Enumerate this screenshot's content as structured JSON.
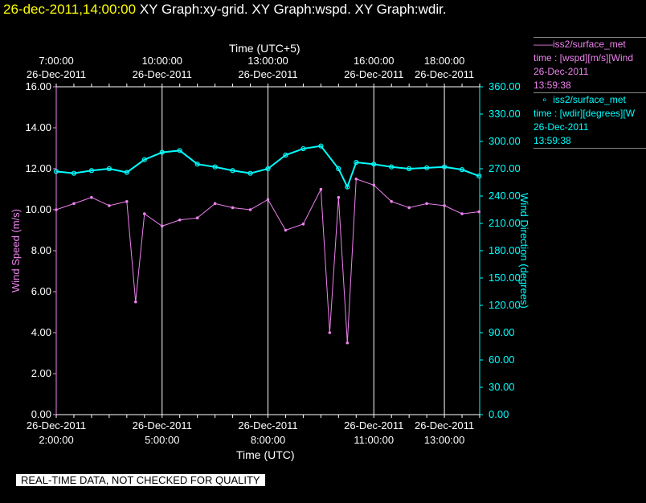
{
  "header": {
    "timestamp": "26-dec-2011,14:00:00",
    "graphs": "XY Graph:xy-grid.  XY Graph:wspd.  XY Graph:wdir."
  },
  "top_axis": {
    "title": "Time (UTC+5)",
    "ticks": [
      {
        "time": "7:00:00",
        "date": "26-Dec-2011"
      },
      {
        "time": "10:00:00",
        "date": "26-Dec-2011"
      },
      {
        "time": "13:00:00",
        "date": "26-Dec-2011"
      },
      {
        "time": "16:00:00",
        "date": "26-Dec-2011"
      },
      {
        "time": "18:00:00",
        "date": "26-Dec-2011"
      }
    ]
  },
  "bottom_axis": {
    "title": "Time (UTC)",
    "ticks": [
      {
        "date": "26-Dec-2011",
        "time": "2:00:00"
      },
      {
        "date": "26-Dec-2011",
        "time": "5:00:00"
      },
      {
        "date": "26-Dec-2011",
        "time": "8:00:00"
      },
      {
        "date": "26-Dec-2011",
        "time": "11:00:00"
      },
      {
        "date": "26-Dec-2011",
        "time": "13:00:00"
      }
    ]
  },
  "legend": {
    "wspd": {
      "name": "iss2/surface_met",
      "var": "time : [wspd][m/s][Wind",
      "date": "26-Dec-2011",
      "time": "13:59:38"
    },
    "wdir": {
      "name": "iss2/surface_met",
      "var": "time : [wdir][degrees][W",
      "date": "26-Dec-2011",
      "time": "13:59:38"
    }
  },
  "notice": "REAL-TIME DATA, NOT CHECKED FOR QUALITY",
  "colors": {
    "wspd": "#ee82ee",
    "wdir": "#00ffff",
    "timestamp": "#ffff00",
    "grid": "#ffffff"
  },
  "chart_data": {
    "type": "line",
    "xlabel": "Time (UTC)",
    "x2label": "Time (UTC+5)",
    "xlim": [
      "26-Dec-2011 02:00",
      "26-Dec-2011 14:00"
    ],
    "ylabel": "Wind Speed (m/s)",
    "ylim": [
      0,
      16
    ],
    "y_ticks": [
      "0.00",
      "2.00",
      "4.00",
      "6.00",
      "8.00",
      "10.00",
      "12.00",
      "14.00",
      "16.00"
    ],
    "y2label": "Wind Direction (degrees)",
    "y2lim": [
      0,
      360
    ],
    "y2_ticks": [
      "0.00",
      "30.00",
      "60.00",
      "90.00",
      "120.00",
      "150.00",
      "180.00",
      "210.00",
      "240.00",
      "270.00",
      "300.00",
      "330.00",
      "360.00"
    ],
    "grid": true,
    "series": [
      {
        "name": "iss2/surface_met",
        "variable": "wspd",
        "axis": "left",
        "x": [
          "02:00",
          "02:30",
          "03:00",
          "03:30",
          "04:00",
          "04:15",
          "04:30",
          "05:00",
          "05:30",
          "06:00",
          "06:30",
          "07:00",
          "07:30",
          "08:00",
          "08:30",
          "09:00",
          "09:30",
          "09:45",
          "10:00",
          "10:15",
          "10:30",
          "11:00",
          "11:30",
          "12:00",
          "12:30",
          "13:00",
          "13:30",
          "13:59"
        ],
        "values": [
          10.0,
          10.3,
          10.6,
          10.2,
          10.4,
          5.5,
          9.8,
          9.2,
          9.5,
          9.6,
          10.3,
          10.1,
          10.0,
          10.5,
          9.0,
          9.3,
          11.0,
          4.0,
          10.6,
          3.5,
          11.5,
          11.2,
          10.4,
          10.1,
          10.3,
          10.2,
          9.8,
          9.9
        ]
      },
      {
        "name": "iss2/surface_met",
        "variable": "wdir",
        "axis": "right",
        "x": [
          "02:00",
          "02:30",
          "03:00",
          "03:30",
          "04:00",
          "04:30",
          "05:00",
          "05:30",
          "06:00",
          "06:30",
          "07:00",
          "07:30",
          "08:00",
          "08:30",
          "09:00",
          "09:30",
          "10:00",
          "10:15",
          "10:30",
          "11:00",
          "11:30",
          "12:00",
          "12:30",
          "13:00",
          "13:30",
          "13:59"
        ],
        "values": [
          267,
          265,
          268,
          270,
          266,
          280,
          288,
          290,
          275,
          272,
          268,
          265,
          270,
          285,
          292,
          295,
          270,
          250,
          277,
          275,
          272,
          270,
          271,
          272,
          269,
          262
        ]
      }
    ]
  }
}
